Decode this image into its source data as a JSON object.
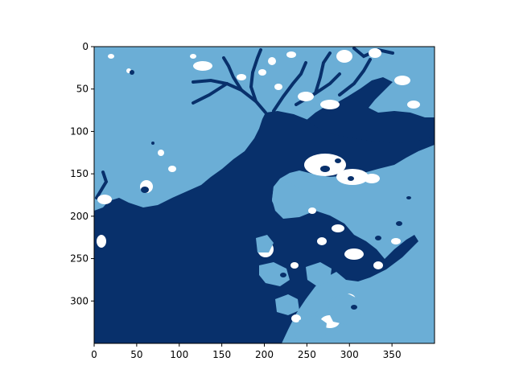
{
  "chart_data": {
    "type": "heatmap",
    "title": "",
    "xlabel": "",
    "ylabel": "",
    "xlim": [
      0,
      400
    ],
    "ylim": [
      350,
      0
    ],
    "x_ticks": [
      "0",
      "50",
      "100",
      "150",
      "200",
      "250",
      "300",
      "350"
    ],
    "y_ticks": [
      "0",
      "50",
      "100",
      "150",
      "200",
      "250",
      "300"
    ],
    "colormap": "Blues (3 levels)",
    "colors": {
      "low": "#ffffff",
      "mid": "#6baed6",
      "high": "#08306b"
    },
    "grid": false,
    "legend": "none"
  }
}
